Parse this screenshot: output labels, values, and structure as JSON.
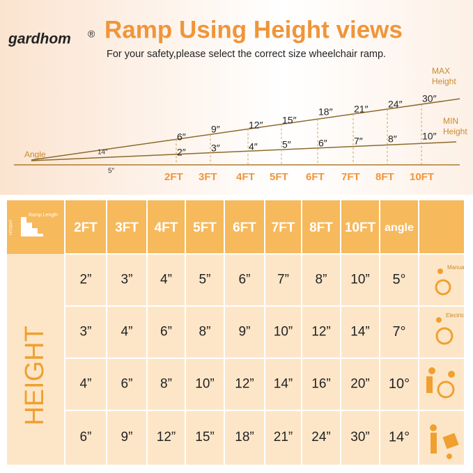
{
  "header": {
    "logo": "gardhom",
    "logo_mark": "®",
    "title": "Ramp Using Height views",
    "subtitle": "For your safety,please select the correct size wheelchair ramp."
  },
  "diagram": {
    "angle_label": "Angle",
    "max_label": [
      "MAX",
      "Height"
    ],
    "min_label": [
      "MIN",
      "Height"
    ],
    "max_angle": "14″",
    "min_angle": "5″",
    "max_heights": [
      "6″",
      "9″",
      "12″",
      "15″",
      "18″",
      "21″",
      "24″",
      "30″"
    ],
    "min_heights": [
      "2″",
      "3″",
      "4″",
      "5″",
      "6″",
      "7″",
      "8″",
      "10″"
    ],
    "lengths": [
      "2FT",
      "3FT",
      "4FT",
      "5FT",
      "6FT",
      "7FT",
      "8FT",
      "10FT"
    ]
  },
  "table": {
    "corner": {
      "height": "HTIGHT",
      "length": "Ramp Length"
    },
    "side_label": "HEIGHT",
    "columns": [
      "2FT",
      "3FT",
      "4FT",
      "5FT",
      "6FT",
      "7FT",
      "8FT",
      "10FT",
      "angle"
    ],
    "rows": [
      [
        "2”",
        "3”",
        "4”",
        "5”",
        "6”",
        "7”",
        "8”",
        "10”",
        "5°"
      ],
      [
        "3”",
        "4”",
        "6”",
        "8”",
        "9”",
        "10”",
        "12”",
        "14”",
        "7°"
      ],
      [
        "4”",
        "6”",
        "8”",
        "10”",
        "12”",
        "14”",
        "16”",
        "20”",
        "10°"
      ],
      [
        "6”",
        "9”",
        "12”",
        "15”",
        "18”",
        "21”",
        "24”",
        "30”",
        "14°"
      ]
    ],
    "icon_labels": [
      "Manual",
      "Electric"
    ]
  }
}
